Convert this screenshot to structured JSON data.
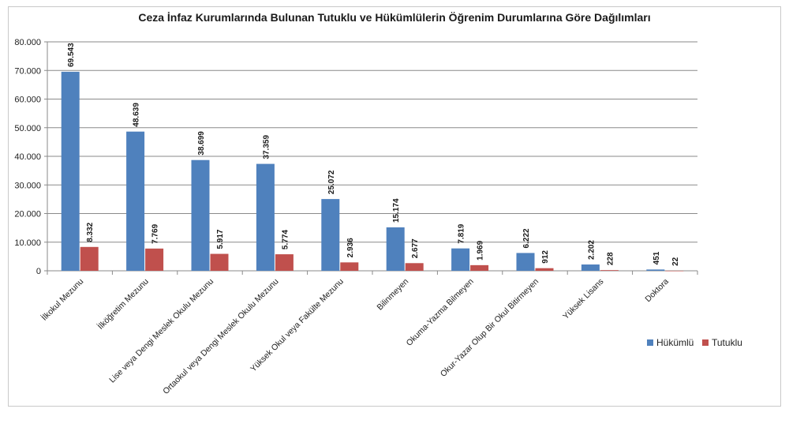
{
  "chart_data": {
    "type": "bar",
    "title": "Ceza İnfaz Kurumlarında Bulunan Tutuklu ve Hükümlülerin Öğrenim Durumlarına Göre Dağılımları",
    "categories": [
      "İlkokul Mezunu",
      "İlköğretim Mezunu",
      "Lise veya Dengi Meslek Okulu Mezunu",
      "Ortaokul veya Dengi Meslek Okulu Mezunu",
      "Yüksek Okul veya Fakülte Mezunu",
      "Bilinmeyen",
      "Okuma-Yazma Bilmeyen",
      "Okur-Yazar Olup Bir Okul Bitirmeyen",
      "Yüksek Lisans",
      "Doktora"
    ],
    "series": [
      {
        "name": "Hükümlü",
        "color": "#4f81bd",
        "values": [
          69543,
          48639,
          38699,
          37359,
          25072,
          15174,
          7819,
          6222,
          2202,
          451
        ],
        "labels": [
          "69.543",
          "48.639",
          "38.699",
          "37.359",
          "25.072",
          "15.174",
          "7.819",
          "6.222",
          "2.202",
          "451"
        ]
      },
      {
        "name": "Tutuklu",
        "color": "#c0504d",
        "values": [
          8332,
          7769,
          5917,
          5774,
          2936,
          2677,
          1969,
          912,
          228,
          22
        ],
        "labels": [
          "8.332",
          "7.769",
          "5.917",
          "5.774",
          "2.936",
          "2.677",
          "1.969",
          "912",
          "228",
          "22"
        ]
      }
    ],
    "ylim": [
      0,
      80000
    ],
    "yticks": [
      "0",
      "10.000",
      "20.000",
      "30.000",
      "40.000",
      "50.000",
      "60.000",
      "70.000",
      "80.000"
    ],
    "grid": true,
    "legend": "right"
  }
}
